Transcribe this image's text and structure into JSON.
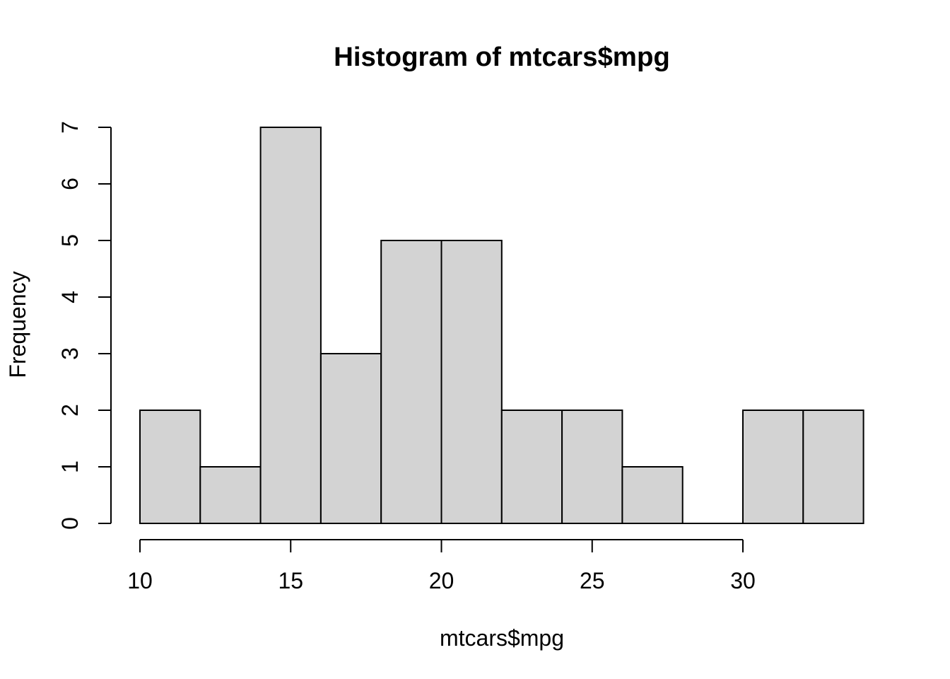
{
  "chart_data": {
    "type": "bar",
    "subtype": "histogram",
    "title": "Histogram of mtcars$mpg",
    "xlabel": "mtcars$mpg",
    "ylabel": "Frequency",
    "bins": {
      "breaks": [
        10,
        12,
        14,
        16,
        18,
        20,
        22,
        24,
        26,
        28,
        30,
        32,
        34
      ],
      "bin_width": 2,
      "counts": [
        2,
        1,
        7,
        3,
        5,
        5,
        2,
        2,
        1,
        0,
        2,
        2
      ]
    },
    "x_ticks": [
      10,
      15,
      20,
      25,
      30
    ],
    "y_ticks": [
      0,
      1,
      2,
      3,
      4,
      5,
      6,
      7
    ],
    "xlim": [
      10,
      34
    ],
    "ylim": [
      0,
      7
    ],
    "grid": false,
    "legend": "none",
    "colors": {
      "bar_fill": "#d3d3d3",
      "bar_stroke": "#000000",
      "axis": "#000000",
      "text": "#000000",
      "background": "#ffffff"
    }
  }
}
